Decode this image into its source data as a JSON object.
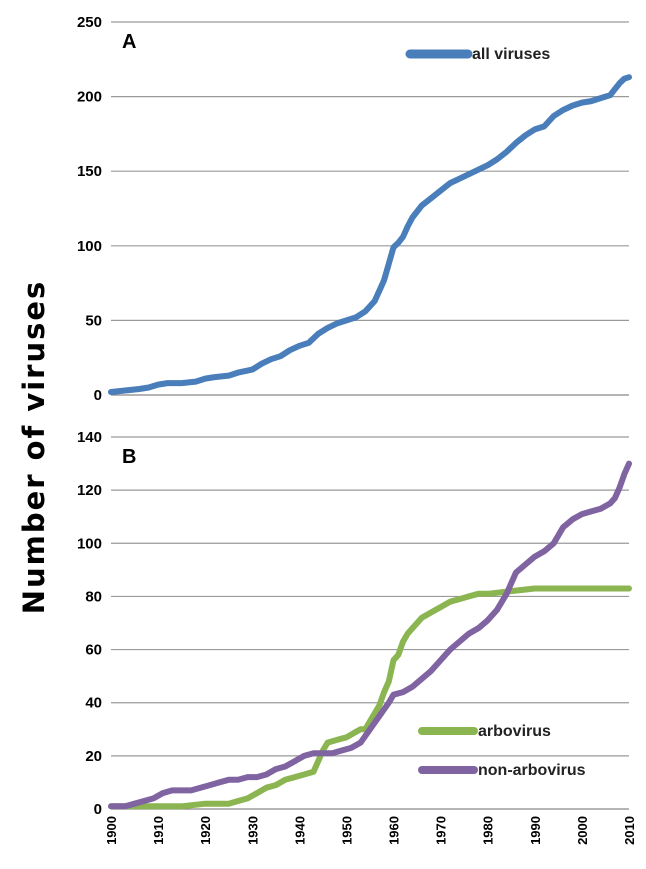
{
  "ylabel": "Number of viruses",
  "chart_data": [
    {
      "type": "line",
      "panel": "A",
      "ylim": [
        0,
        250
      ],
      "yticks": [
        0,
        50,
        100,
        150,
        200,
        250
      ],
      "xlim": [
        1900,
        2010
      ],
      "grid": true,
      "legend_position": "top-right",
      "series": [
        {
          "name": "all viruses",
          "color": "#4a7ebb",
          "x": [
            1900,
            1903,
            1906,
            1908,
            1910,
            1912,
            1915,
            1918,
            1920,
            1922,
            1925,
            1927,
            1930,
            1932,
            1934,
            1936,
            1938,
            1940,
            1942,
            1944,
            1946,
            1948,
            1950,
            1952,
            1954,
            1956,
            1957,
            1958,
            1959,
            1960,
            1961,
            1962,
            1963,
            1964,
            1965,
            1966,
            1968,
            1970,
            1972,
            1974,
            1976,
            1978,
            1980,
            1982,
            1984,
            1986,
            1988,
            1990,
            1992,
            1994,
            1996,
            1998,
            2000,
            2002,
            2004,
            2006,
            2007,
            2008,
            2009,
            2010
          ],
          "values": [
            2,
            3,
            4,
            5,
            7,
            8,
            8,
            9,
            11,
            12,
            13,
            15,
            17,
            21,
            24,
            26,
            30,
            33,
            35,
            41,
            45,
            48,
            50,
            52,
            56,
            63,
            70,
            77,
            88,
            99,
            102,
            106,
            113,
            119,
            123,
            127,
            132,
            137,
            142,
            145,
            148,
            151,
            154,
            158,
            163,
            169,
            174,
            178,
            180,
            187,
            191,
            194,
            196,
            197,
            199,
            201,
            205,
            209,
            212,
            213
          ]
        }
      ]
    },
    {
      "type": "line",
      "panel": "B",
      "ylim": [
        0,
        140
      ],
      "yticks": [
        0,
        20,
        40,
        60,
        80,
        100,
        120,
        140
      ],
      "xlim": [
        1900,
        2010
      ],
      "xticks": [
        1900,
        1910,
        1920,
        1930,
        1940,
        1950,
        1960,
        1970,
        1980,
        1990,
        2000,
        2010
      ],
      "grid": true,
      "legend_position": "bottom-right",
      "series": [
        {
          "name": "arbovirus",
          "color": "#8ab551",
          "x": [
            1900,
            1905,
            1910,
            1915,
            1920,
            1925,
            1927,
            1929,
            1931,
            1933,
            1935,
            1937,
            1939,
            1941,
            1943,
            1944,
            1945,
            1946,
            1948,
            1950,
            1952,
            1953,
            1954,
            1955,
            1956,
            1957,
            1958,
            1959,
            1960,
            1961,
            1962,
            1963,
            1964,
            1966,
            1968,
            1970,
            1972,
            1974,
            1976,
            1978,
            1980,
            1985,
            1990,
            2000,
            2010
          ],
          "values": [
            1,
            1,
            1,
            1,
            2,
            2,
            3,
            4,
            6,
            8,
            9,
            11,
            12,
            13,
            14,
            18,
            22,
            25,
            26,
            27,
            29,
            30,
            30,
            33,
            36,
            39,
            44,
            48,
            56,
            58,
            63,
            66,
            68,
            72,
            74,
            76,
            78,
            79,
            80,
            81,
            81,
            82,
            83,
            83,
            83
          ]
        },
        {
          "name": "non-arbovirus",
          "color": "#8064a2",
          "x": [
            1900,
            1903,
            1905,
            1907,
            1909,
            1911,
            1913,
            1915,
            1917,
            1919,
            1921,
            1923,
            1925,
            1927,
            1929,
            1931,
            1933,
            1935,
            1937,
            1939,
            1941,
            1943,
            1945,
            1947,
            1949,
            1951,
            1953,
            1955,
            1957,
            1959,
            1960,
            1962,
            1964,
            1966,
            1968,
            1970,
            1972,
            1974,
            1976,
            1978,
            1980,
            1982,
            1984,
            1985,
            1986,
            1988,
            1990,
            1992,
            1994,
            1996,
            1998,
            2000,
            2002,
            2004,
            2006,
            2007,
            2008,
            2009,
            2010
          ],
          "values": [
            1,
            1,
            2,
            3,
            4,
            6,
            7,
            7,
            7,
            8,
            9,
            10,
            11,
            11,
            12,
            12,
            13,
            15,
            16,
            18,
            20,
            21,
            21,
            21,
            22,
            23,
            25,
            30,
            35,
            40,
            43,
            44,
            46,
            49,
            52,
            56,
            60,
            63,
            66,
            68,
            71,
            75,
            81,
            85,
            89,
            92,
            95,
            97,
            100,
            106,
            109,
            111,
            112,
            113,
            115,
            117,
            121,
            126,
            130
          ]
        }
      ]
    }
  ]
}
